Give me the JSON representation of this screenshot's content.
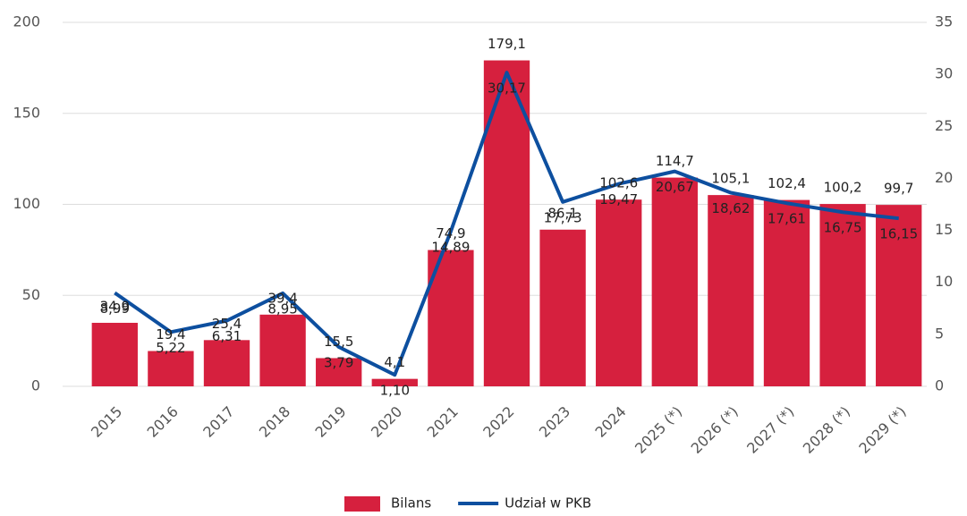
{
  "chart_data": {
    "type": "bar_line",
    "categories": [
      "2015",
      "2016",
      "2017",
      "2018",
      "2019",
      "2020",
      "2021",
      "2022",
      "2023",
      "2024",
      "2025 (*)",
      "2026 (*)",
      "2027 (*)",
      "2028 (*)",
      "2029 (*)"
    ],
    "series": [
      {
        "name": "Bilans",
        "type": "bar",
        "color": "#d6203e",
        "values": [
          34.9,
          19.4,
          25.4,
          39.4,
          15.5,
          4.1,
          74.9,
          179.1,
          86.1,
          102.6,
          114.7,
          105.1,
          102.4,
          100.2,
          99.7
        ],
        "value_labels": [
          "34,9",
          "19,4",
          "25,4",
          "39,4",
          "15,5",
          "4,1",
          "74,9",
          "179,1",
          "86,1",
          "102,6",
          "114,7",
          "105,1",
          "102,4",
          "100,2",
          "99,7"
        ]
      },
      {
        "name": "Udział w PKB",
        "type": "line",
        "axis": "y2",
        "color": "#0d4f9f",
        "values": [
          8.99,
          5.22,
          6.31,
          8.95,
          3.79,
          1.1,
          14.89,
          30.17,
          17.73,
          19.47,
          20.67,
          18.62,
          17.61,
          16.75,
          16.15
        ],
        "value_labels": [
          "8,99",
          "5,22",
          "6,31",
          "8,95",
          "3,79",
          "1,10",
          "14,89",
          "30,17",
          "17,73",
          "19,47",
          "20,67",
          "18,62",
          "17,61",
          "16,75",
          "16,15"
        ]
      }
    ],
    "ylim": [
      0,
      200
    ],
    "yticks": [
      0,
      50,
      100,
      150,
      200
    ],
    "y2lim": [
      0,
      35
    ],
    "y2ticks": [
      0,
      5,
      10,
      15,
      20,
      25,
      30,
      35
    ],
    "grid": true,
    "legend": "bottom"
  }
}
